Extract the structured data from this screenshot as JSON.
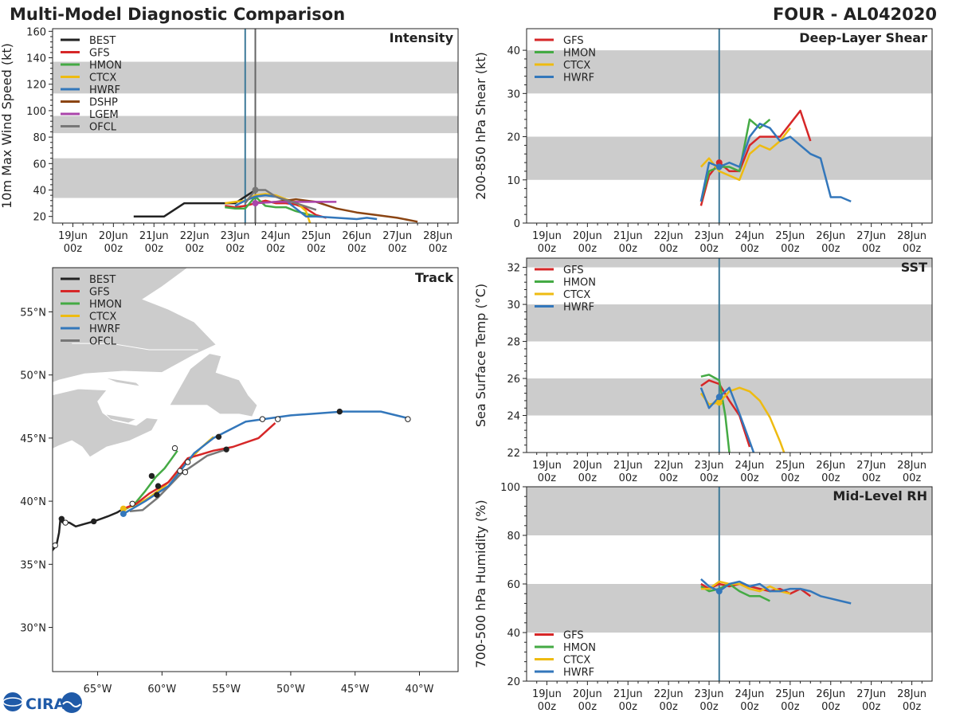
{
  "title_left": "Multi-Model Diagnostic Comparison",
  "title_right": "FOUR - AL042020",
  "logo_text": "CIRA",
  "colors": {
    "BEST": "#222222",
    "GFS": "#d62728",
    "HMON": "#44aa44",
    "CTCX": "#eebb11",
    "HWRF": "#3377bb",
    "DSHP": "#8b4513",
    "LGEM": "#aa44aa",
    "OFCL": "#777777",
    "band": "#cccccc",
    "land": "#cccccc",
    "vline_hwrf": "#3d7a99",
    "vline_ofcl": "#666666"
  },
  "time_ticks": [
    "19Jun\n00z",
    "20Jun\n00z",
    "21Jun\n00z",
    "22Jun\n00z",
    "23Jun\n00z",
    "24Jun\n00z",
    "25Jun\n00z",
    "26Jun\n00z",
    "27Jun\n00z",
    "28Jun\n00z"
  ],
  "chart_data": [
    {
      "id": "intensity",
      "type": "line",
      "title": "Intensity",
      "ylabel": "10m Max Wind Speed (kt)",
      "xlim": [
        -0.5,
        9.5
      ],
      "ylim": [
        15,
        162
      ],
      "yticks": [
        20,
        40,
        60,
        80,
        100,
        120,
        140,
        160
      ],
      "bands": [
        [
          34,
          64
        ],
        [
          83,
          96
        ],
        [
          113,
          137
        ]
      ],
      "vlines": [
        {
          "x": 4.25,
          "color_key": "vline_hwrf"
        },
        {
          "x": 4.5,
          "color_key": "vline_ofcl"
        }
      ],
      "legend": [
        "BEST",
        "GFS",
        "HMON",
        "CTCX",
        "HWRF",
        "DSHP",
        "LGEM",
        "OFCL"
      ],
      "series": [
        {
          "name": "BEST",
          "x": [
            1.5,
            2.25,
            2.75,
            3.0,
            3.5,
            4.0,
            4.5
          ],
          "y": [
            20,
            20,
            30,
            30,
            30,
            30,
            40
          ]
        },
        {
          "name": "GFS",
          "x": [
            3.75,
            4.0,
            4.25,
            4.5,
            4.75,
            5.0,
            5.25,
            5.5,
            5.75,
            6.0,
            6.25
          ],
          "y": [
            28,
            27,
            28,
            30,
            32,
            30,
            30,
            29,
            26,
            21,
            19
          ]
        },
        {
          "name": "HMON",
          "x": [
            3.75,
            4.0,
            4.25,
            4.5,
            4.75,
            5.0,
            5.25,
            5.5,
            5.75,
            6.0
          ],
          "y": [
            27,
            26,
            26,
            35,
            28,
            27,
            27,
            24,
            22,
            20
          ]
        },
        {
          "name": "CTCX",
          "x": [
            3.75,
            4.0,
            4.25,
            4.5,
            4.75,
            5.0,
            5.25,
            5.5,
            5.75,
            5.85
          ],
          "y": [
            30,
            31,
            32,
            36,
            37,
            36,
            33,
            31,
            24,
            15
          ]
        },
        {
          "name": "HWRF",
          "x": [
            4.0,
            4.25,
            4.5,
            4.75,
            5.0,
            5.25,
            5.5,
            5.75,
            6.0,
            6.5,
            7.0,
            7.25,
            7.5
          ],
          "y": [
            28,
            32,
            35,
            36,
            35,
            32,
            26,
            20,
            20,
            19,
            18,
            19,
            18
          ]
        },
        {
          "name": "DSHP",
          "x": [
            4.5,
            5.0,
            5.5,
            6.0,
            6.5,
            7.0,
            7.5,
            8.0,
            8.5
          ],
          "y": [
            30,
            31,
            33,
            31,
            26,
            23,
            21,
            19,
            16
          ]
        },
        {
          "name": "LGEM",
          "x": [
            4.5,
            5.0,
            5.5,
            6.0,
            6.5
          ],
          "y": [
            30,
            31,
            31,
            31,
            31
          ]
        },
        {
          "name": "OFCL",
          "x": [
            4.25,
            4.5,
            4.75,
            5.0,
            5.5,
            6.0
          ],
          "y": [
            30,
            40,
            40,
            35,
            30,
            25
          ]
        }
      ],
      "markers": [
        {
          "name": "OFCL",
          "x": 4.5,
          "y": 40
        },
        {
          "name": "LGEM",
          "x": 4.5,
          "y": 30
        }
      ]
    },
    {
      "id": "shear",
      "type": "line",
      "title": "Deep-Layer Shear",
      "ylabel": "200-850 hPa Shear (kt)",
      "xlim": [
        -0.5,
        9.5
      ],
      "ylim": [
        0,
        45
      ],
      "yticks": [
        0,
        10,
        20,
        30,
        40
      ],
      "bands": [
        [
          10,
          20
        ],
        [
          30,
          40
        ]
      ],
      "vlines": [
        {
          "x": 4.25,
          "color_key": "vline_hwrf"
        }
      ],
      "legend": [
        "GFS",
        "HMON",
        "CTCX",
        "HWRF"
      ],
      "series": [
        {
          "name": "GFS",
          "x": [
            3.8,
            4.0,
            4.25,
            4.5,
            4.75,
            5.0,
            5.25,
            5.5,
            5.75,
            6.0,
            6.25,
            6.5
          ],
          "y": [
            4,
            11,
            14,
            12,
            12,
            18,
            20,
            20,
            20,
            23,
            26,
            19
          ]
        },
        {
          "name": "HMON",
          "x": [
            3.8,
            4.0,
            4.25,
            4.5,
            4.75,
            5.0,
            5.25,
            5.5
          ],
          "y": [
            5,
            12,
            13,
            13,
            12,
            24,
            22,
            24
          ]
        },
        {
          "name": "CTCX",
          "x": [
            3.8,
            4.0,
            4.25,
            4.5,
            4.75,
            5.0,
            5.25,
            5.5,
            5.75,
            6.0
          ],
          "y": [
            13,
            15,
            12,
            11,
            10,
            16,
            18,
            17,
            19,
            22
          ]
        },
        {
          "name": "HWRF",
          "x": [
            3.8,
            4.0,
            4.25,
            4.5,
            4.75,
            5.0,
            5.25,
            5.5,
            5.75,
            6.0,
            6.25,
            6.5,
            6.75,
            7.0,
            7.25,
            7.5
          ],
          "y": [
            5,
            14,
            13,
            14,
            13,
            20,
            23,
            22,
            19,
            20,
            18,
            16,
            15,
            6,
            6,
            5
          ]
        }
      ],
      "markers": [
        {
          "name": "GFS",
          "x": 4.25,
          "y": 14
        },
        {
          "name": "HWRF",
          "x": 4.25,
          "y": 13
        }
      ]
    },
    {
      "id": "sst",
      "type": "line",
      "title": "SST",
      "ylabel": "Sea Surface Temp (°C)",
      "xlim": [
        -0.5,
        9.5
      ],
      "ylim": [
        22,
        32.5
      ],
      "yticks": [
        22,
        24,
        26,
        28,
        30,
        32
      ],
      "bands": [
        [
          24,
          26
        ],
        [
          28,
          30
        ],
        [
          32,
          33
        ]
      ],
      "vlines": [
        {
          "x": 4.25,
          "color_key": "vline_hwrf"
        }
      ],
      "legend": [
        "GFS",
        "HMON",
        "CTCX",
        "HWRF"
      ],
      "series": [
        {
          "name": "GFS",
          "x": [
            3.8,
            4.0,
            4.25,
            4.5,
            4.75,
            5.0
          ],
          "y": [
            25.6,
            25.9,
            25.7,
            24.8,
            24.0,
            22.3
          ]
        },
        {
          "name": "HMON",
          "x": [
            3.8,
            4.0,
            4.25,
            4.4,
            4.5
          ],
          "y": [
            26.1,
            26.2,
            25.9,
            24.0,
            22.0
          ]
        },
        {
          "name": "CTCX",
          "x": [
            3.8,
            4.0,
            4.25,
            4.5,
            4.75,
            5.0,
            5.25,
            5.5,
            5.75,
            5.85
          ],
          "y": [
            25.2,
            24.6,
            24.7,
            25.3,
            25.5,
            25.3,
            24.8,
            23.9,
            22.6,
            22.0
          ]
        },
        {
          "name": "HWRF",
          "x": [
            3.8,
            4.0,
            4.25,
            4.5,
            4.75,
            5.0,
            5.1
          ],
          "y": [
            25.5,
            24.4,
            25.0,
            25.5,
            24.1,
            22.6,
            22.0
          ]
        }
      ],
      "markers": [
        {
          "name": "CTCX",
          "x": 4.25,
          "y": 24.7
        },
        {
          "name": "HWRF",
          "x": 4.25,
          "y": 25.0
        }
      ]
    },
    {
      "id": "rh",
      "type": "line",
      "title": "Mid-Level RH",
      "ylabel": "700-500 hPa Humidity (%)",
      "xlim": [
        -0.5,
        9.5
      ],
      "ylim": [
        20,
        100
      ],
      "yticks": [
        20,
        40,
        60,
        80,
        100
      ],
      "bands": [
        [
          40,
          60
        ],
        [
          80,
          100
        ]
      ],
      "vlines": [
        {
          "x": 4.25,
          "color_key": "vline_hwrf"
        }
      ],
      "legend": [
        "GFS",
        "HMON",
        "CTCX",
        "HWRF"
      ],
      "legend_pos": "bottom-left",
      "series": [
        {
          "name": "GFS",
          "x": [
            3.8,
            4.0,
            4.25,
            4.5,
            4.75,
            5.0,
            5.25,
            5.5,
            5.75,
            6.0,
            6.25,
            6.5
          ],
          "y": [
            60,
            58,
            60,
            59,
            60,
            59,
            58,
            57,
            58,
            56,
            58,
            55
          ]
        },
        {
          "name": "HMON",
          "x": [
            3.8,
            4.0,
            4.25,
            4.5,
            4.75,
            5.0,
            5.25,
            5.5
          ],
          "y": [
            59,
            57,
            58,
            60,
            57,
            55,
            55,
            53
          ]
        },
        {
          "name": "CTCX",
          "x": [
            3.8,
            4.0,
            4.25,
            4.5,
            4.75,
            5.0,
            5.25,
            5.5,
            5.75,
            6.0
          ],
          "y": [
            58,
            58,
            61,
            60,
            60,
            58,
            57,
            59,
            57,
            56
          ]
        },
        {
          "name": "HWRF",
          "x": [
            3.8,
            4.0,
            4.25,
            4.5,
            4.75,
            5.0,
            5.25,
            5.5,
            5.75,
            6.0,
            6.25,
            6.5,
            6.75,
            7.0,
            7.25,
            7.5
          ],
          "y": [
            62,
            59,
            57,
            60,
            61,
            59,
            60,
            57,
            57,
            58,
            58,
            57,
            55,
            54,
            53,
            52
          ]
        }
      ],
      "markers": [
        {
          "name": "HWRF",
          "x": 4.25,
          "y": 57
        }
      ]
    },
    {
      "id": "track",
      "type": "scatter",
      "title": "Track",
      "xlim": [
        -68.5,
        -37.0
      ],
      "ylim": [
        26.5,
        58.5
      ],
      "xticks": [
        -65,
        -60,
        -55,
        -50,
        -45,
        -40
      ],
      "xtick_labels": [
        "65°W",
        "60°W",
        "55°W",
        "50°W",
        "45°W",
        "40°W"
      ],
      "yticks": [
        30,
        35,
        40,
        45,
        50,
        55
      ],
      "ytick_labels": [
        "30°N",
        "35°N",
        "40°N",
        "45°N",
        "50°N",
        "55°N"
      ],
      "legend": [
        "BEST",
        "GFS",
        "HMON",
        "CTCX",
        "HWRF",
        "OFCL"
      ],
      "series": [
        {
          "name": "BEST",
          "lon": [
            -68.6,
            -68.2,
            -68.0,
            -67.9,
            -67.7,
            -67.2,
            -66.7,
            -66.0,
            -65.3,
            -64.2,
            -63.5,
            -63.0
          ],
          "lat": [
            36.0,
            36.5,
            37.5,
            38.5,
            38.3,
            38.3,
            38.0,
            38.2,
            38.4,
            38.8,
            39.1,
            39.4
          ]
        },
        {
          "name": "GFS",
          "lon": [
            -63.0,
            -62.0,
            -61.0,
            -59.5,
            -58.0,
            -56.0,
            -54.5,
            -52.5,
            -51.2
          ],
          "lat": [
            39.4,
            39.8,
            40.6,
            41.5,
            43.4,
            44.0,
            44.3,
            45.0,
            46.2
          ]
        },
        {
          "name": "HMON",
          "lon": [
            -63.0,
            -62.2,
            -61.3,
            -60.5,
            -59.8,
            -59.3,
            -58.8
          ],
          "lat": [
            39.3,
            39.7,
            40.8,
            41.9,
            42.6,
            43.3,
            44.0
          ]
        },
        {
          "name": "CTCX",
          "lon": [
            -63.0,
            -62.0,
            -61.0,
            -59.8,
            -58.2,
            -57.0,
            -56.0
          ],
          "lat": [
            39.4,
            39.7,
            40.3,
            41.2,
            42.9,
            44.2,
            45.1
          ]
        },
        {
          "name": "HWRF",
          "lon": [
            -63.0,
            -61.3,
            -59.5,
            -57.5,
            -56.0,
            -53.5,
            -50.0,
            -46.0,
            -43.0,
            -41.0
          ],
          "lat": [
            39.0,
            40.0,
            41.2,
            43.8,
            45.0,
            46.3,
            46.8,
            47.1,
            47.1,
            46.6
          ]
        },
        {
          "name": "OFCL",
          "lon": [
            -62.5,
            -61.5,
            -60.3,
            -58.5,
            -56.5,
            -55.0
          ],
          "lat": [
            39.2,
            39.3,
            40.3,
            42.2,
            43.6,
            44.1
          ]
        }
      ],
      "points": [
        {
          "lon": -68.3,
          "lat": 36.5,
          "filled": false
        },
        {
          "lon": -67.5,
          "lat": 38.3,
          "filled": false
        },
        {
          "lon": -67.8,
          "lat": 38.6,
          "filled": true
        },
        {
          "lon": -65.3,
          "lat": 38.4,
          "filled": true
        },
        {
          "lon": -62.3,
          "lat": 39.8,
          "filled": false
        },
        {
          "lon": -60.4,
          "lat": 40.5,
          "filled": true
        },
        {
          "lon": -60.3,
          "lat": 41.2,
          "filled": true
        },
        {
          "lon": -60.8,
          "lat": 42.0,
          "filled": true
        },
        {
          "lon": -58.6,
          "lat": 42.4,
          "filled": false
        },
        {
          "lon": -58.2,
          "lat": 42.3,
          "filled": false
        },
        {
          "lon": -58.0,
          "lat": 43.1,
          "filled": false
        },
        {
          "lon": -59.0,
          "lat": 44.2,
          "filled": false
        },
        {
          "lon": -55.6,
          "lat": 45.1,
          "filled": true
        },
        {
          "lon": -55.0,
          "lat": 44.1,
          "filled": true
        },
        {
          "lon": -52.2,
          "lat": 46.5,
          "filled": false
        },
        {
          "lon": -51.0,
          "lat": 46.5,
          "filled": false
        },
        {
          "lon": -46.2,
          "lat": 47.1,
          "filled": true
        },
        {
          "lon": -40.9,
          "lat": 46.5,
          "filled": false
        }
      ],
      "point_colors": [
        {
          "lon": -63.0,
          "lat": 39.4,
          "name": "CTCX"
        },
        {
          "lon": -63.0,
          "lat": 39.0,
          "name": "HWRF"
        }
      ]
    }
  ]
}
